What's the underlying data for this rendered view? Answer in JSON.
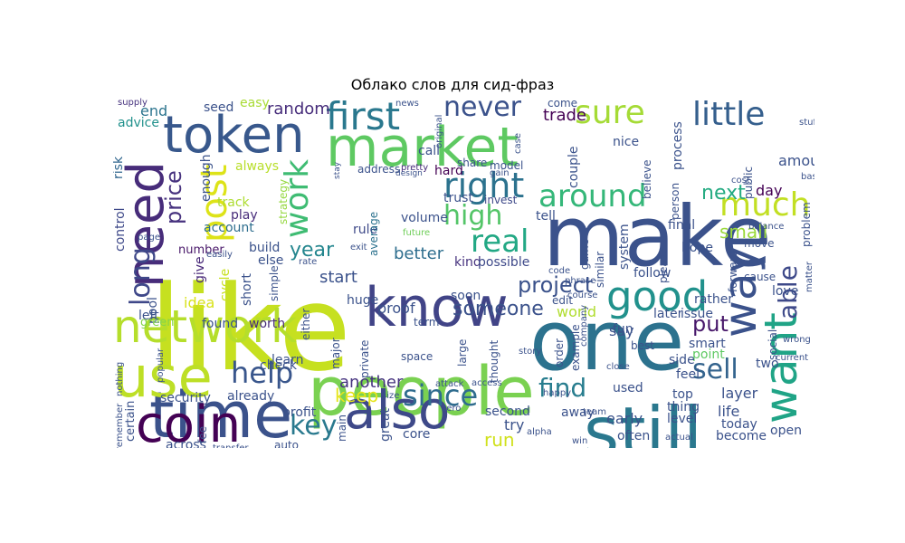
{
  "title": "Облако слов для сид-фраз",
  "words": [
    {
      "text": "like",
      "color": "#c6e020"
    },
    {
      "text": "people",
      "color": "#7ad151"
    },
    {
      "text": "make",
      "color": "#3b528b"
    },
    {
      "text": "one",
      "color": "#2c728e"
    },
    {
      "text": "time",
      "color": "#3b528b"
    },
    {
      "text": "still",
      "color": "#2a788e"
    },
    {
      "text": "know",
      "color": "#414487"
    },
    {
      "text": "market",
      "color": "#5ec962"
    },
    {
      "text": "token",
      "color": "#38588c"
    },
    {
      "text": "need",
      "color": "#472c7a"
    },
    {
      "text": "use",
      "color": "#bddf26"
    },
    {
      "text": "coin",
      "color": "#440154"
    },
    {
      "text": "also",
      "color": "#3e4989"
    },
    {
      "text": "want",
      "color": "#20a486"
    },
    {
      "text": "network",
      "color": "#b5de2b"
    },
    {
      "text": "way",
      "color": "#3b528b"
    },
    {
      "text": "good",
      "color": "#21918c"
    },
    {
      "text": "first",
      "color": "#2a788e"
    },
    {
      "text": "post",
      "color": "#dde318"
    },
    {
      "text": "work",
      "color": "#3fbc73"
    },
    {
      "text": "right",
      "color": "#2c728e"
    },
    {
      "text": "real",
      "color": "#22a884"
    },
    {
      "text": "sure",
      "color": "#a5db36"
    },
    {
      "text": "little",
      "color": "#355f8d"
    },
    {
      "text": "never",
      "color": "#3b528b"
    },
    {
      "text": "around",
      "color": "#35b779"
    },
    {
      "text": "high",
      "color": "#54c568"
    },
    {
      "text": "much",
      "color": "#c2df23"
    },
    {
      "text": "since",
      "color": "#2f6c8e"
    },
    {
      "text": "help",
      "color": "#39568c"
    },
    {
      "text": "key",
      "color": "#29798e"
    },
    {
      "text": "sell",
      "color": "#33638d"
    },
    {
      "text": "long",
      "color": "#3f4889"
    },
    {
      "text": "price",
      "color": "#46317e"
    },
    {
      "text": "able",
      "color": "#3e4989"
    },
    {
      "text": "find",
      "color": "#287d8e"
    },
    {
      "text": "project",
      "color": "#3b528b"
    },
    {
      "text": "someone",
      "color": "#3b528b"
    },
    {
      "text": "put",
      "color": "#48186a"
    },
    {
      "text": "next",
      "color": "#25ab82"
    },
    {
      "text": "small",
      "color": "#9bd93c"
    },
    {
      "text": "year",
      "color": "#24868e"
    },
    {
      "text": "keep",
      "color": "#e5e419"
    },
    {
      "text": "run",
      "color": "#d0e11c"
    },
    {
      "text": "another",
      "color": "#46337f"
    },
    {
      "text": "random",
      "color": "#472d7b"
    },
    {
      "text": "trade",
      "color": "#440154"
    },
    {
      "text": "day",
      "color": "#440154"
    },
    {
      "text": "amount",
      "color": "#3b528b"
    },
    {
      "text": "end",
      "color": "#2b748e"
    },
    {
      "text": "advice",
      "color": "#21918c"
    },
    {
      "text": "supply",
      "color": "#46327e"
    },
    {
      "text": "seed",
      "color": "#3b528b"
    },
    {
      "text": "easy",
      "color": "#a8db34"
    },
    {
      "text": "enough",
      "color": "#3b528b"
    },
    {
      "text": "always",
      "color": "#b8de29"
    },
    {
      "text": "track",
      "color": "#addc30"
    },
    {
      "text": "account",
      "color": "#2e6e8e"
    },
    {
      "text": "play",
      "color": "#472c7a"
    },
    {
      "text": "control",
      "color": "#3e4989"
    },
    {
      "text": "risk",
      "color": "#31668e"
    },
    {
      "text": "strategy",
      "color": "#95d840"
    },
    {
      "text": "address",
      "color": "#3b528b"
    },
    {
      "text": "pretty",
      "color": "#472a7a"
    },
    {
      "text": "hard",
      "color": "#440154"
    },
    {
      "text": "trust",
      "color": "#3b528b"
    },
    {
      "text": "invest",
      "color": "#3e4989"
    },
    {
      "text": "volume",
      "color": "#3b528b"
    },
    {
      "text": "future",
      "color": "#6ece58"
    },
    {
      "text": "tell",
      "color": "#3b528b"
    },
    {
      "text": "build",
      "color": "#3b528b"
    },
    {
      "text": "number",
      "color": "#481769"
    },
    {
      "text": "give",
      "color": "#482878"
    },
    {
      "text": "else",
      "color": "#3b528b"
    },
    {
      "text": "start",
      "color": "#3b528b"
    },
    {
      "text": "better",
      "color": "#2e6e8e"
    },
    {
      "text": "kind",
      "color": "#46327e"
    },
    {
      "text": "possible",
      "color": "#3e4989"
    },
    {
      "text": "rule",
      "color": "#3e4989"
    },
    {
      "text": "average",
      "color": "#2c728e"
    },
    {
      "text": "exit",
      "color": "#3b528b"
    },
    {
      "text": "rate",
      "color": "#3b528b"
    },
    {
      "text": "short",
      "color": "#3b528b"
    },
    {
      "text": "simple",
      "color": "#3b528b"
    },
    {
      "text": "cycle",
      "color": "#c8e020"
    },
    {
      "text": "idea",
      "color": "#d8e219"
    },
    {
      "text": "pool",
      "color": "#3b528b"
    },
    {
      "text": "left",
      "color": "#3b528b"
    },
    {
      "text": "green",
      "color": "#84d44b"
    },
    {
      "text": "found",
      "color": "#3b528b"
    },
    {
      "text": "worth",
      "color": "#472c7a"
    },
    {
      "text": "either",
      "color": "#3b528b"
    },
    {
      "text": "huge",
      "color": "#3b528b"
    },
    {
      "text": "proof",
      "color": "#3b528b"
    },
    {
      "text": "term",
      "color": "#3b528b"
    },
    {
      "text": "edit",
      "color": "#3b528b"
    },
    {
      "text": "world",
      "color": "#b0dd2f"
    },
    {
      "text": "say",
      "color": "#3b528b"
    },
    {
      "text": "smart",
      "color": "#3b528b"
    },
    {
      "text": "point",
      "color": "#5ec962"
    },
    {
      "text": "side",
      "color": "#3b528b"
    },
    {
      "text": "used",
      "color": "#3b528b"
    },
    {
      "text": "top",
      "color": "#3b528b"
    },
    {
      "text": "layer",
      "color": "#3b528b"
    },
    {
      "text": "two",
      "color": "#3b528b"
    },
    {
      "text": "thing",
      "color": "#3b528b"
    },
    {
      "text": "level",
      "color": "#3b528b"
    },
    {
      "text": "life",
      "color": "#3b528b"
    },
    {
      "text": "today",
      "color": "#3b528b"
    },
    {
      "text": "become",
      "color": "#3b528b"
    },
    {
      "text": "open",
      "color": "#3b528b"
    },
    {
      "text": "early",
      "color": "#3b528b"
    },
    {
      "text": "try",
      "color": "#3b528b"
    },
    {
      "text": "second",
      "color": "#3b528b"
    },
    {
      "text": "away",
      "color": "#3b528b"
    },
    {
      "text": "often",
      "color": "#3b528b"
    },
    {
      "text": "win",
      "color": "#3b528b"
    },
    {
      "text": "core",
      "color": "#3b528b"
    },
    {
      "text": "great",
      "color": "#3b528b"
    },
    {
      "text": "main",
      "color": "#3b528b"
    },
    {
      "text": "profit",
      "color": "#3b528b"
    },
    {
      "text": "auto",
      "color": "#3b528b"
    },
    {
      "text": "across",
      "color": "#3b528b"
    },
    {
      "text": "transfer",
      "color": "#3b528b"
    },
    {
      "text": "fee",
      "color": "#3b528b"
    },
    {
      "text": "certain",
      "color": "#3b528b"
    },
    {
      "text": "security",
      "color": "#3b528b"
    },
    {
      "text": "already",
      "color": "#3b528b"
    },
    {
      "text": "learn",
      "color": "#3b528b"
    },
    {
      "text": "check",
      "color": "#3b528b"
    },
    {
      "text": "major",
      "color": "#3b528b"
    },
    {
      "text": "private",
      "color": "#3b528b"
    },
    {
      "text": "space",
      "color": "#3b528b"
    },
    {
      "text": "large",
      "color": "#3b528b"
    },
    {
      "text": "thought",
      "color": "#3b528b"
    },
    {
      "text": "order",
      "color": "#3b528b"
    },
    {
      "text": "example",
      "color": "#3b528b"
    },
    {
      "text": "company",
      "color": "#3b528b"
    },
    {
      "text": "best",
      "color": "#3b528b"
    },
    {
      "text": "later",
      "color": "#3b528b"
    },
    {
      "text": "issue",
      "color": "#3b528b"
    },
    {
      "text": "love",
      "color": "#3b528b"
    },
    {
      "text": "move",
      "color": "#3b528b"
    },
    {
      "text": "cause",
      "color": "#3b528b"
    },
    {
      "text": "social",
      "color": "#3b528b"
    },
    {
      "text": "wrong",
      "color": "#3b528b"
    },
    {
      "text": "current",
      "color": "#3b528b"
    },
    {
      "text": "close",
      "color": "#3b528b"
    },
    {
      "text": "fun",
      "color": "#3b528b"
    },
    {
      "text": "feel",
      "color": "#3b528b"
    },
    {
      "text": "rather",
      "color": "#3b528b"
    },
    {
      "text": "forward",
      "color": "#3b528b"
    },
    {
      "text": "follow",
      "color": "#3b528b"
    },
    {
      "text": "hope",
      "color": "#3b528b"
    },
    {
      "text": "system",
      "color": "#3b528b"
    },
    {
      "text": "please",
      "color": "#3b528b"
    },
    {
      "text": "similar",
      "color": "#3b528b"
    },
    {
      "text": "game",
      "color": "#3b528b"
    },
    {
      "text": "final",
      "color": "#3b528b"
    },
    {
      "text": "person",
      "color": "#3b528b"
    },
    {
      "text": "believe",
      "color": "#3b528b"
    },
    {
      "text": "couple",
      "color": "#3b528b"
    },
    {
      "text": "process",
      "color": "#3b528b"
    },
    {
      "text": "public",
      "color": "#3b528b"
    },
    {
      "text": "base",
      "color": "#3b528b"
    },
    {
      "text": "stuff",
      "color": "#3b528b"
    },
    {
      "text": "cost",
      "color": "#3b528b"
    },
    {
      "text": "balance",
      "color": "#3b528b"
    },
    {
      "text": "problem",
      "color": "#3b528b"
    },
    {
      "text": "matter",
      "color": "#3b528b"
    },
    {
      "text": "nice",
      "color": "#3b528b"
    },
    {
      "text": "come",
      "color": "#3b528b"
    },
    {
      "text": "model",
      "color": "#3b528b"
    },
    {
      "text": "share",
      "color": "#3b528b"
    },
    {
      "text": "call",
      "color": "#3b528b"
    },
    {
      "text": "case",
      "color": "#3b528b"
    },
    {
      "text": "gain",
      "color": "#3b528b"
    },
    {
      "text": "original",
      "color": "#3b528b"
    },
    {
      "text": "stay",
      "color": "#3b528b"
    },
    {
      "text": "design",
      "color": "#3b528b"
    },
    {
      "text": "news",
      "color": "#3b528b"
    },
    {
      "text": "soon",
      "color": "#3b528b"
    },
    {
      "text": "page",
      "color": "#3b528b"
    },
    {
      "text": "easily",
      "color": "#3b528b"
    },
    {
      "text": "code",
      "color": "#3b528b"
    },
    {
      "text": "phrase",
      "color": "#3b528b"
    },
    {
      "text": "course",
      "color": "#3b528b"
    },
    {
      "text": "story",
      "color": "#3b528b"
    },
    {
      "text": "attack",
      "color": "#3b528b"
    },
    {
      "text": "access",
      "color": "#3b528b"
    },
    {
      "text": "happy",
      "color": "#3b528b"
    },
    {
      "text": "zero",
      "color": "#3b528b"
    },
    {
      "text": "size",
      "color": "#3b528b"
    },
    {
      "text": "team",
      "color": "#3b528b"
    },
    {
      "text": "alpha",
      "color": "#3b528b"
    },
    {
      "text": "actual",
      "color": "#3b528b"
    },
    {
      "text": "nothing",
      "color": "#3b528b"
    },
    {
      "text": "remember",
      "color": "#3b528b"
    },
    {
      "text": "popular",
      "color": "#3b528b"
    }
  ]
}
